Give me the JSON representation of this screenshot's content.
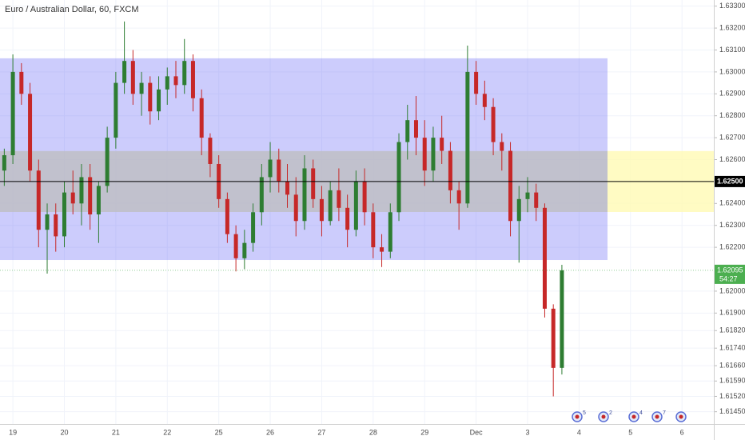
{
  "chart_data": {
    "type": "candlestick",
    "title": "Euro / Australian Dollar, 60, FXCM",
    "categories": [
      null,
      "19",
      null,
      null,
      null,
      null,
      null,
      "20",
      null,
      null,
      null,
      null,
      null,
      "21",
      null,
      null,
      null,
      null,
      null,
      "22",
      null,
      null,
      null,
      null,
      null,
      "25",
      null,
      null,
      null,
      null,
      null,
      "26",
      null,
      null,
      null,
      null,
      null,
      "27",
      null,
      null,
      null,
      null,
      null,
      "28",
      null,
      null,
      null,
      null,
      null,
      "29",
      null,
      null,
      null,
      null,
      null,
      "Dec",
      null,
      null,
      null,
      null,
      null,
      "3",
      null,
      null,
      null,
      null,
      null,
      "4",
      null,
      null,
      null,
      null,
      null,
      "5",
      null,
      null,
      null,
      null,
      null,
      "6",
      null,
      null
    ],
    "open": [
      1.6255,
      1.6262,
      1.63,
      1.629,
      1.6255,
      1.6228,
      1.6235,
      1.6225,
      1.6245,
      1.624,
      1.6252,
      1.6235,
      1.6248,
      1.627,
      1.6295,
      1.6305,
      1.629,
      1.6295,
      1.6282,
      1.6292,
      1.6298,
      1.6294,
      1.6305,
      1.6288,
      1.627,
      1.6258,
      1.6242,
      1.6226,
      1.6215,
      1.6222,
      1.6236,
      1.6252,
      1.626,
      1.625,
      1.6244,
      1.6232,
      1.6256,
      1.6242,
      1.6232,
      1.6246,
      1.6238,
      1.6228,
      1.625,
      1.6236,
      1.622,
      1.6218,
      1.6236,
      1.6268,
      1.6278,
      1.627,
      1.6255,
      1.627,
      1.6264,
      1.6246,
      1.624,
      1.63,
      1.629,
      1.6284,
      1.6268,
      1.6264,
      1.6232,
      1.6242,
      1.6245,
      1.6238,
      1.6192,
      1.6165,
      null,
      null,
      null,
      null,
      null,
      null,
      null,
      null,
      null,
      null,
      null,
      null,
      null,
      null,
      null,
      null
    ],
    "high": [
      1.6265,
      1.6308,
      1.6304,
      1.6295,
      1.626,
      1.624,
      1.624,
      1.625,
      1.6255,
      1.6258,
      1.6258,
      1.625,
      1.6275,
      1.63,
      1.6323,
      1.631,
      1.63,
      1.6298,
      1.6298,
      1.6302,
      1.6305,
      1.6315,
      1.6308,
      1.6292,
      1.6272,
      1.6262,
      1.6245,
      1.623,
      1.6228,
      1.624,
      1.6258,
      1.6268,
      1.6265,
      1.6258,
      1.6252,
      1.6262,
      1.626,
      1.6248,
      1.625,
      1.6256,
      1.6244,
      1.6255,
      1.6256,
      1.624,
      1.6226,
      1.624,
      1.6272,
      1.6285,
      1.6289,
      1.6278,
      1.6275,
      1.628,
      1.6268,
      1.625,
      1.6312,
      1.6305,
      1.6296,
      1.6288,
      1.6272,
      1.6268,
      1.6248,
      1.6252,
      1.6249,
      1.624,
      1.6194,
      1.6212,
      null,
      null,
      null,
      null,
      null,
      null,
      null,
      null,
      null,
      null,
      null,
      null,
      null,
      null,
      null,
      null
    ],
    "low": [
      1.6248,
      1.6258,
      1.6285,
      1.625,
      1.622,
      1.6208,
      1.6218,
      1.622,
      1.6235,
      1.623,
      1.6228,
      1.6222,
      1.6245,
      1.6265,
      1.629,
      1.6285,
      1.628,
      1.6276,
      1.6278,
      1.6285,
      1.6288,
      1.629,
      1.6282,
      1.6262,
      1.6252,
      1.6238,
      1.6222,
      1.6209,
      1.621,
      1.6218,
      1.623,
      1.6245,
      1.6245,
      1.6238,
      1.6225,
      1.6228,
      1.6238,
      1.6225,
      1.623,
      1.6232,
      1.622,
      1.6225,
      1.623,
      1.6215,
      1.6211,
      1.6215,
      1.6232,
      1.626,
      1.6262,
      1.6248,
      1.625,
      1.6258,
      1.624,
      1.6228,
      1.6238,
      1.6285,
      1.6278,
      1.6262,
      1.6255,
      1.6225,
      1.6213,
      1.6236,
      1.6232,
      1.6188,
      1.6152,
      1.6162,
      null,
      null,
      null,
      null,
      null,
      null,
      null,
      null,
      null,
      null,
      null,
      null,
      null,
      null,
      null,
      null
    ],
    "close": [
      1.6262,
      1.63,
      1.629,
      1.6255,
      1.6228,
      1.6235,
      1.6225,
      1.6245,
      1.624,
      1.6252,
      1.6235,
      1.6248,
      1.627,
      1.6295,
      1.6305,
      1.629,
      1.6295,
      1.6282,
      1.6292,
      1.6298,
      1.6294,
      1.6305,
      1.6288,
      1.627,
      1.6258,
      1.6242,
      1.6226,
      1.6215,
      1.6222,
      1.6236,
      1.6252,
      1.626,
      1.625,
      1.6244,
      1.6232,
      1.6256,
      1.6242,
      1.6232,
      1.6246,
      1.6238,
      1.6228,
      1.625,
      1.6236,
      1.622,
      1.6218,
      1.6236,
      1.6268,
      1.6278,
      1.627,
      1.6255,
      1.627,
      1.6264,
      1.6246,
      1.624,
      1.63,
      1.629,
      1.6284,
      1.6268,
      1.6264,
      1.6232,
      1.6242,
      1.6245,
      1.6238,
      1.6192,
      1.6165,
      1.62095,
      null,
      null,
      null,
      null,
      null,
      null,
      null,
      null,
      null,
      null,
      null,
      null,
      null,
      null,
      null,
      null
    ],
    "up_color": "#2e7d32",
    "down_color": "#c62828",
    "ylim": [
      1.61394,
      1.63328
    ],
    "yticks": [
      {
        "value": 1.633,
        "label": "1.63300"
      },
      {
        "value": 1.632,
        "label": "1.63200"
      },
      {
        "value": 1.631,
        "label": "1.63100"
      },
      {
        "value": 1.63,
        "label": "1.63000"
      },
      {
        "value": 1.629,
        "label": "1.62900"
      },
      {
        "value": 1.628,
        "label": "1.62800"
      },
      {
        "value": 1.627,
        "label": "1.62700"
      },
      {
        "value": 1.626,
        "label": "1.62600"
      },
      {
        "value": 1.624,
        "label": "1.62400"
      },
      {
        "value": 1.623,
        "label": "1.62300"
      },
      {
        "value": 1.622,
        "label": "1.62200"
      },
      {
        "value": 1.62,
        "label": "1.62000"
      },
      {
        "value": 1.619,
        "label": "1.61900"
      },
      {
        "value": 1.6182,
        "label": "1.61820"
      },
      {
        "value": 1.6174,
        "label": "1.61740"
      },
      {
        "value": 1.6166,
        "label": "1.61660"
      },
      {
        "value": 1.6159,
        "label": "1.61590"
      },
      {
        "value": 1.6152,
        "label": "1.61520"
      },
      {
        "value": 1.6145,
        "label": "1.61450"
      }
    ],
    "grid": true,
    "zones": [
      {
        "top": 1.63062,
        "bottom": 1.62142,
        "color": "rgba(110,110,245,0.35)"
      },
      {
        "top": 1.62639,
        "bottom": 1.62361,
        "color": "rgba(190,190,190,0.75)"
      }
    ],
    "projection_zone": {
      "top": 1.62639,
      "bottom": 1.62361,
      "color": "rgba(255,250,180,0.8)"
    },
    "hline": {
      "value": 1.625,
      "label": "1.62500",
      "color": "#000000"
    },
    "last_price": {
      "value": 1.62095,
      "label": "1.62095",
      "countdown": "54:27",
      "color": "#4caf50"
    },
    "events": [
      {
        "label": "5"
      },
      {
        "label": "2"
      },
      {
        "label": "4"
      },
      {
        "label": "7"
      },
      {}
    ]
  }
}
